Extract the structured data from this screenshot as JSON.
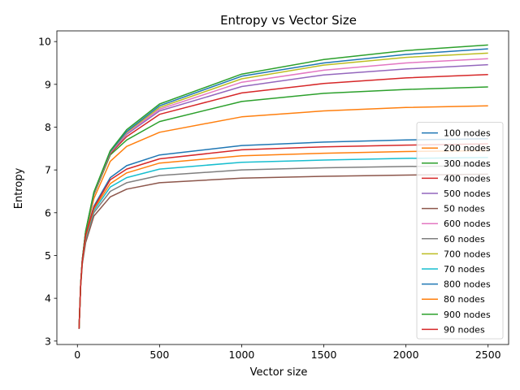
{
  "chart_data": {
    "type": "line",
    "title": "Entropy vs Vector Size",
    "xlabel": "Vector size",
    "ylabel": "Entropy",
    "xlim": [
      -125,
      2625
    ],
    "ylim": [
      2.92,
      10.25
    ],
    "xticks": [
      0,
      500,
      1000,
      1500,
      2000,
      2500
    ],
    "yticks": [
      3,
      4,
      5,
      6,
      7,
      8,
      9,
      10
    ],
    "grid": false,
    "legend_position": "lower right",
    "x": [
      10,
      20,
      30,
      50,
      100,
      200,
      300,
      500,
      1000,
      1500,
      2000,
      2500
    ],
    "series": [
      {
        "name": "100 nodes",
        "color": "#1f77b4",
        "values": [
          3.3,
          4.32,
          4.88,
          5.5,
          6.15,
          6.82,
          7.1,
          7.35,
          7.57,
          7.65,
          7.7,
          7.73
        ]
      },
      {
        "name": "200 nodes",
        "color": "#ff7f0e",
        "values": [
          3.3,
          4.33,
          4.9,
          5.53,
          6.33,
          7.2,
          7.55,
          7.88,
          8.24,
          8.38,
          8.46,
          8.5
        ]
      },
      {
        "name": "300 nodes",
        "color": "#2ca02c",
        "values": [
          3.3,
          4.33,
          4.9,
          5.55,
          6.42,
          7.35,
          7.7,
          8.13,
          8.6,
          8.79,
          8.88,
          8.94
        ]
      },
      {
        "name": "400 nodes",
        "color": "#d62728",
        "values": [
          3.3,
          4.33,
          4.9,
          5.55,
          6.43,
          7.38,
          7.78,
          8.3,
          8.8,
          9.02,
          9.15,
          9.23
        ]
      },
      {
        "name": "500 nodes",
        "color": "#9467bd",
        "values": [
          3.3,
          4.33,
          4.9,
          5.56,
          6.44,
          7.4,
          7.83,
          8.38,
          8.95,
          9.22,
          9.36,
          9.46
        ]
      },
      {
        "name": "50 nodes",
        "color": "#8c564b",
        "values": [
          3.28,
          4.28,
          4.8,
          5.3,
          5.92,
          6.37,
          6.55,
          6.7,
          6.81,
          6.85,
          6.88,
          6.9
        ]
      },
      {
        "name": "600 nodes",
        "color": "#e377c2",
        "values": [
          3.3,
          4.33,
          4.9,
          5.56,
          6.45,
          7.41,
          7.86,
          8.42,
          9.05,
          9.33,
          9.5,
          9.6
        ]
      },
      {
        "name": "60 nodes",
        "color": "#7f7f7f",
        "values": [
          3.28,
          4.3,
          4.83,
          5.37,
          6.0,
          6.5,
          6.7,
          6.87,
          7.0,
          7.05,
          7.08,
          7.1
        ]
      },
      {
        "name": "700 nodes",
        "color": "#bcbd22",
        "values": [
          3.3,
          4.33,
          4.9,
          5.56,
          6.46,
          7.42,
          7.88,
          8.46,
          9.13,
          9.45,
          9.63,
          9.73
        ]
      },
      {
        "name": "70 nodes",
        "color": "#17becf",
        "values": [
          3.29,
          4.31,
          4.85,
          5.42,
          6.05,
          6.6,
          6.82,
          7.02,
          7.18,
          7.23,
          7.27,
          7.29
        ]
      },
      {
        "name": "800 nodes",
        "color": "#1f77b4",
        "values": [
          3.3,
          4.33,
          4.9,
          5.56,
          6.47,
          7.43,
          7.9,
          8.5,
          9.19,
          9.5,
          9.7,
          9.83
        ]
      },
      {
        "name": "80 nodes",
        "color": "#ff7f0e",
        "values": [
          3.29,
          4.31,
          4.86,
          5.45,
          6.09,
          6.68,
          6.93,
          7.16,
          7.33,
          7.39,
          7.43,
          7.45
        ]
      },
      {
        "name": "900 nodes",
        "color": "#2ca02c",
        "values": [
          3.3,
          4.33,
          4.9,
          5.57,
          6.48,
          7.45,
          7.94,
          8.54,
          9.24,
          9.58,
          9.79,
          9.92
        ]
      },
      {
        "name": "90 nodes",
        "color": "#d62728",
        "values": [
          3.29,
          4.32,
          4.87,
          5.48,
          6.12,
          6.77,
          7.02,
          7.26,
          7.47,
          7.54,
          7.58,
          7.61
        ]
      }
    ]
  }
}
